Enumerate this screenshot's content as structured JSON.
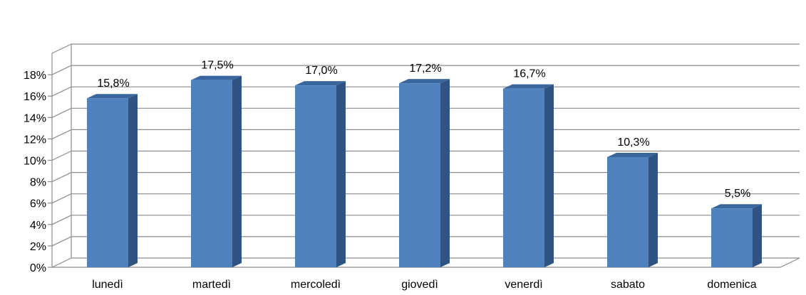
{
  "chart_data": {
    "type": "bar",
    "style": "3d-column",
    "categories": [
      "lunedì",
      "martedì",
      "mercoledì",
      "giovedì",
      "venerdì",
      "sabato",
      "domenica"
    ],
    "values": [
      15.8,
      17.5,
      17.0,
      17.2,
      16.7,
      10.3,
      5.5
    ],
    "data_labels": [
      "15,8%",
      "17,5%",
      "17,0%",
      "17,2%",
      "16,7%",
      "10,3%",
      "5,5%"
    ],
    "y_ticks": [
      0,
      2,
      4,
      6,
      8,
      10,
      12,
      14,
      16,
      18
    ],
    "y_tick_labels": [
      "0%",
      "2%",
      "4%",
      "6%",
      "8%",
      "10%",
      "12%",
      "14%",
      "16%",
      "18%"
    ],
    "ylim": [
      0,
      20
    ],
    "grid": true,
    "legend": "none",
    "colors": {
      "bar_front": "#4F81BD",
      "bar_side": "#2F5483",
      "bar_top": "#3A669E",
      "grid": "#8C8C8C"
    }
  }
}
